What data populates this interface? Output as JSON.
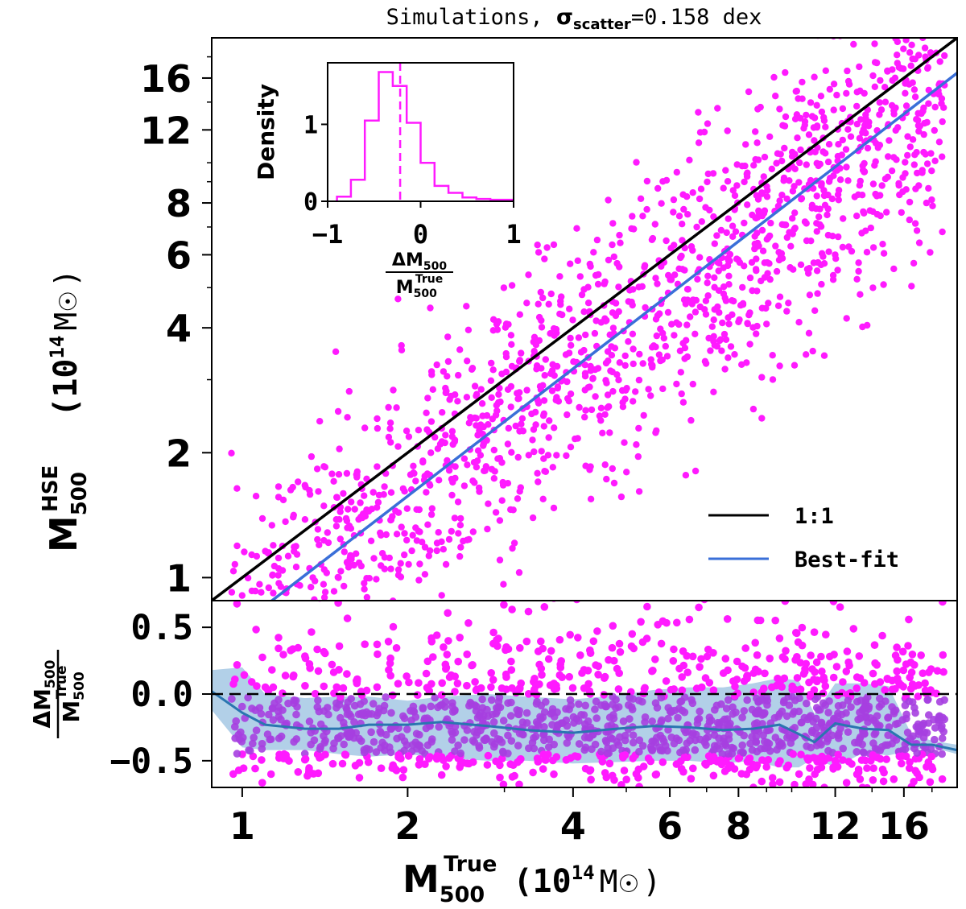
{
  "colors": {
    "points": "#ff1aff",
    "points_overlap": "#a63fe0",
    "one_to_one": "#000000",
    "best_fit": "#3a6fd8",
    "band_fill": "#7fb0d8",
    "median_line": "#2a75b0",
    "hist": "#ff1aff",
    "axis": "#000000"
  },
  "chart_data": [
    {
      "id": "main",
      "type": "scatter",
      "title_prefix": "Simulations, ",
      "title_sigma": "σ",
      "title_sub": "scatter",
      "title_suffix": "=0.158 dex",
      "xscale": "log",
      "yscale": "log",
      "xlim": [
        0.88,
        20
      ],
      "ylim": [
        0.88,
        20
      ],
      "ylabel_main": "M",
      "ylabel_sup": "HSE",
      "ylabel_sub": "500",
      "ylabel_units": "(10",
      "ylabel_units_exp": "14",
      "ylabel_units_tail": "M",
      "ylabel_units_sun": "☉",
      "ylabel_units_close": ")",
      "yticks": [
        1,
        2,
        4,
        6,
        8,
        12,
        16
      ],
      "ytick_labels": [
        "1",
        "2",
        "4",
        "6",
        "8",
        "12",
        "16"
      ],
      "lines": [
        {
          "name": "1:1",
          "label": "1:1",
          "slope": 1.0,
          "norm": 1.0
        },
        {
          "name": "Best-fit",
          "label": "Best-fit",
          "slope": 1.02,
          "norm": 0.775
        }
      ],
      "scatter_description": {
        "n_points": 1500,
        "median_ratio": 0.775,
        "sigma_dex": 0.158
      }
    },
    {
      "id": "residual",
      "type": "scatter",
      "ylabel_num": "ΔM",
      "ylabel_num_sub": "500",
      "ylabel_den": "M",
      "ylabel_den_sup": "True",
      "ylabel_den_sub": "500",
      "ylim": [
        -0.7,
        0.7
      ],
      "yticks": [
        0.5,
        0.0,
        -0.5
      ],
      "ytick_labels": [
        "0.5",
        "0.0",
        "−0.5"
      ],
      "reference_line": 0.0,
      "median_curve": {
        "x": [
          0.88,
          1.0,
          1.1,
          1.3,
          1.5,
          1.7,
          2.0,
          2.3,
          2.8,
          3.3,
          4.0,
          4.8,
          5.6,
          6.5,
          7.5,
          8.5,
          9.5,
          10.3,
          11.0,
          12.0,
          13.5,
          15.0,
          16.5,
          18.0,
          20.0
        ],
        "y": [
          0.02,
          -0.14,
          -0.23,
          -0.26,
          -0.26,
          -0.23,
          -0.23,
          -0.21,
          -0.24,
          -0.27,
          -0.29,
          -0.26,
          -0.24,
          -0.25,
          -0.27,
          -0.26,
          -0.23,
          -0.3,
          -0.36,
          -0.22,
          -0.26,
          -0.27,
          -0.38,
          -0.38,
          -0.42
        ]
      },
      "band_upper": [
        0.18,
        0.2,
        0.0,
        -0.03,
        -0.02,
        -0.02,
        -0.05,
        -0.02,
        0.0,
        -0.02,
        -0.04,
        -0.01,
        0.03,
        0.05,
        0.05,
        0.08,
        0.12,
        0.1,
        -0.15,
        0.08,
        0.08,
        0.06,
        -0.3,
        -0.35,
        -0.38
      ],
      "band_lower": [
        -0.12,
        -0.4,
        -0.42,
        -0.42,
        -0.45,
        -0.47,
        -0.45,
        -0.48,
        -0.5,
        -0.5,
        -0.52,
        -0.51,
        -0.5,
        -0.5,
        -0.52,
        -0.5,
        -0.55,
        -0.55,
        -0.48,
        -0.55,
        -0.44,
        -0.46,
        -0.42,
        -0.4,
        -0.45
      ],
      "xlabel_main": "M",
      "xlabel_sup": "True",
      "xlabel_sub": "500",
      "xlabel_units": "(10",
      "xlabel_units_exp": "14",
      "xlabel_units_tail": "M",
      "xlabel_units_sun": "☉",
      "xlabel_units_close": ")",
      "xticks": [
        1,
        2,
        4,
        6,
        8,
        12,
        16
      ],
      "xtick_labels": [
        "1",
        "2",
        "4",
        "6",
        "8",
        "12",
        "16"
      ]
    },
    {
      "id": "inset",
      "type": "histogram",
      "ylabel": "Density",
      "xlabel_num": "ΔM",
      "xlabel_num_sub": "500",
      "xlabel_den": "M",
      "xlabel_den_sup": "True",
      "xlabel_den_sub": "500",
      "xlim": [
        -1,
        1
      ],
      "ylim": [
        0,
        1.8
      ],
      "xticks": [
        -1,
        0,
        1
      ],
      "xtick_labels": [
        "−1",
        "0",
        "1"
      ],
      "yticks": [
        0,
        1
      ],
      "ytick_labels": [
        "0",
        "1"
      ],
      "bin_edges": [
        -0.9,
        -0.75,
        -0.6,
        -0.45,
        -0.3,
        -0.15,
        0.0,
        0.15,
        0.3,
        0.45,
        0.6,
        0.75,
        0.9,
        1.0
      ],
      "densities": [
        0.06,
        0.28,
        1.05,
        1.68,
        1.5,
        1.02,
        0.5,
        0.2,
        0.11,
        0.05,
        0.03,
        0.02,
        0.02
      ],
      "median_line": -0.22
    }
  ],
  "legend": {
    "items": [
      {
        "label": "1:1"
      },
      {
        "label": "Best-fit"
      }
    ]
  }
}
